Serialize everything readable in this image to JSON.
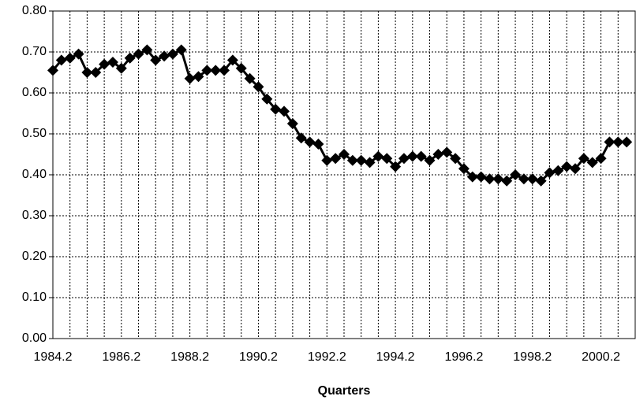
{
  "chart_data": {
    "type": "line",
    "x_label": "Quarters",
    "categories": [
      "1984.2",
      null,
      null,
      null,
      null,
      null,
      null,
      null,
      "1986.2",
      null,
      null,
      null,
      null,
      null,
      null,
      null,
      "1988.2",
      null,
      null,
      null,
      null,
      null,
      null,
      null,
      "1990.2",
      null,
      null,
      null,
      null,
      null,
      null,
      null,
      "1992.2",
      null,
      null,
      null,
      null,
      null,
      null,
      null,
      "1994.2",
      null,
      null,
      null,
      null,
      null,
      null,
      null,
      "1996.2",
      null,
      null,
      null,
      null,
      null,
      null,
      null,
      "1998.2",
      null,
      null,
      null,
      null,
      null,
      null,
      null,
      "2000.2",
      null,
      null,
      null
    ],
    "values": [
      0.655,
      0.68,
      0.685,
      0.695,
      0.65,
      0.65,
      0.67,
      0.675,
      0.66,
      0.685,
      0.695,
      0.705,
      0.68,
      0.69,
      0.695,
      0.705,
      0.635,
      0.64,
      0.655,
      0.655,
      0.655,
      0.68,
      0.66,
      0.635,
      0.615,
      0.585,
      0.56,
      0.555,
      0.525,
      0.49,
      0.48,
      0.475,
      0.435,
      0.44,
      0.45,
      0.435,
      0.435,
      0.43,
      0.445,
      0.44,
      0.42,
      0.44,
      0.445,
      0.445,
      0.435,
      0.45,
      0.455,
      0.44,
      0.415,
      0.395,
      0.395,
      0.39,
      0.39,
      0.385,
      0.4,
      0.39,
      0.39,
      0.385,
      0.405,
      0.41,
      0.42,
      0.415,
      0.44,
      0.43,
      0.44,
      0.48,
      0.48,
      0.48
    ],
    "color": "#000000",
    "ylim": [
      0,
      0.8
    ],
    "yticks": [
      {
        "value": 0,
        "label": "0.00"
      },
      {
        "value": 0.1,
        "label": "0.10"
      },
      {
        "value": 0.2,
        "label": "0.20"
      },
      {
        "value": 0.3,
        "label": "0.30"
      },
      {
        "value": 0.4,
        "label": "0.40"
      },
      {
        "value": 0.5,
        "label": "0.50"
      },
      {
        "value": 0.6,
        "label": "0.60"
      },
      {
        "value": 0.7,
        "label": "0.70"
      },
      {
        "value": 0.8,
        "label": "0.80"
      }
    ],
    "grid": true
  }
}
